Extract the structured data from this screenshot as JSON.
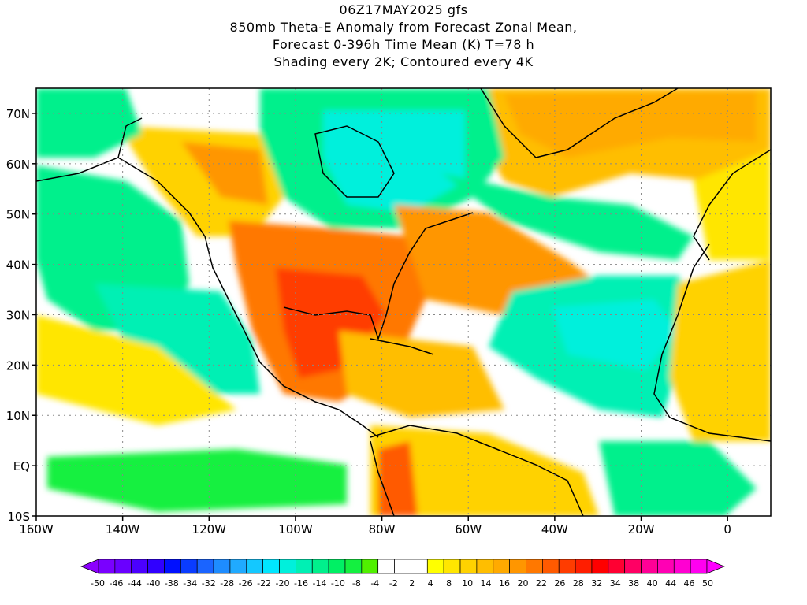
{
  "title": {
    "lines": [
      "06Z17MAY2025 gfs",
      "850mb Theta-E Anomaly from Forecast Zonal Mean,",
      "Forecast 0-396h Time Mean (K) T=78 h",
      "Shading every 2K; Contoured every 4K"
    ]
  },
  "map": {
    "lon_range": [
      -160,
      10
    ],
    "lat_range": [
      -10,
      75
    ],
    "lon_ticks": [
      "160W",
      "140W",
      "120W",
      "100W",
      "80W",
      "60W",
      "40W",
      "20W",
      "0"
    ],
    "lat_ticks": [
      "70N",
      "60N",
      "50N",
      "40N",
      "30N",
      "20N",
      "10N",
      "EQ",
      "10S"
    ],
    "grid": "dotted"
  },
  "colorbar": {
    "labels": [
      "-50",
      "-46",
      "-44",
      "-40",
      "-38",
      "-34",
      "-32",
      "-28",
      "-26",
      "-22",
      "-20",
      "-16",
      "-14",
      "-10",
      "-8",
      "-4",
      "-2",
      "2",
      "4",
      "8",
      "10",
      "14",
      "16",
      "20",
      "22",
      "26",
      "28",
      "32",
      "34",
      "38",
      "40",
      "44",
      "46",
      "50"
    ],
    "colors": [
      "#7a00ff",
      "#6a00ff",
      "#4b00ff",
      "#3000ff",
      "#0010ff",
      "#0a3cff",
      "#1a64ff",
      "#1e8cff",
      "#20aaff",
      "#14c8ff",
      "#00e6ff",
      "#00f0dc",
      "#00f0b4",
      "#00f08c",
      "#00f064",
      "#14f040",
      "#50f000",
      "#ffffff",
      "#ffffff",
      "#ffffff",
      "#ffff00",
      "#ffe600",
      "#ffd200",
      "#ffbe00",
      "#ffaa00",
      "#ff9600",
      "#ff7800",
      "#ff5a00",
      "#ff3c00",
      "#ff1e00",
      "#ff0000",
      "#ff0032",
      "#ff0064",
      "#ff0096",
      "#ff00b4",
      "#ff00d2",
      "#ff00f0"
    ]
  },
  "features": {
    "regions": [
      {
        "name": "cold-canada",
        "color": "#00f0b4"
      },
      {
        "name": "warm-us-gulf",
        "color": "#ff7800"
      },
      {
        "name": "cold-atlantic-subtropics",
        "color": "#00f0dc"
      },
      {
        "name": "cold-pacific",
        "color": "#00f0b4"
      },
      {
        "name": "warm-south-america",
        "color": "#ffd200"
      }
    ]
  }
}
